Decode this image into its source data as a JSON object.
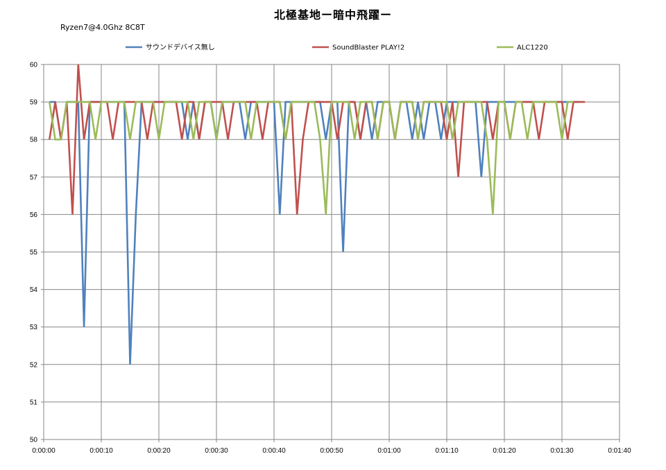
{
  "chart_data": {
    "type": "line",
    "title": "北極基地ー暗中飛躍ー",
    "subtitle": "Ryzen7@4.0Ghz 8C8T",
    "xlabel": "",
    "ylabel": "",
    "ylim": [
      50,
      60
    ],
    "xlim": [
      0,
      100
    ],
    "grid": true,
    "legend_position": "top",
    "yticks": [
      "50",
      "51",
      "52",
      "53",
      "54",
      "55",
      "56",
      "57",
      "58",
      "59",
      "60"
    ],
    "xticks": [
      "0:00:00",
      "0:00:10",
      "0:00:20",
      "0:00:30",
      "0:00:40",
      "0:00:50",
      "0:01:00",
      "0:01:10",
      "0:01:20",
      "0:01:30",
      "0:01:40"
    ],
    "series": [
      {
        "name": "サウンドデバイス無し",
        "color": "#4F81BD",
        "x": [
          1,
          2,
          3,
          4,
          5,
          6,
          7,
          8,
          9,
          10,
          11,
          12,
          13,
          14,
          15,
          16,
          17,
          18,
          19,
          20,
          21,
          22,
          23,
          24,
          25,
          26,
          27,
          28,
          29,
          30,
          31,
          32,
          33,
          34,
          35,
          36,
          37,
          38,
          39,
          40,
          41,
          42,
          43,
          44,
          45,
          46,
          47,
          48,
          49,
          50,
          51,
          52,
          53,
          54,
          55,
          56,
          57,
          58,
          59,
          60,
          61,
          62,
          63,
          64,
          65,
          66,
          67,
          68,
          69,
          70,
          71,
          72,
          73,
          74,
          75,
          76,
          77,
          78,
          79,
          80,
          81,
          82,
          83,
          84,
          85,
          86,
          87,
          88,
          89,
          90,
          91,
          92,
          93
        ],
        "y": [
          59,
          59,
          58,
          59,
          59,
          59,
          53,
          59,
          59,
          59,
          59,
          59,
          59,
          59,
          52,
          56,
          59,
          59,
          59,
          59,
          59,
          59,
          59,
          59,
          58,
          59,
          58,
          59,
          59,
          58,
          59,
          59,
          59,
          59,
          58,
          59,
          59,
          59,
          59,
          59,
          56,
          59,
          59,
          59,
          59,
          59,
          59,
          59,
          58,
          59,
          59,
          55,
          59,
          59,
          58,
          59,
          58,
          59,
          59,
          59,
          58,
          59,
          59,
          58,
          59,
          58,
          59,
          59,
          58,
          59,
          59,
          59,
          59,
          59,
          59,
          57,
          59,
          59,
          59,
          59,
          59,
          59,
          59,
          59,
          59,
          59,
          59,
          59,
          59,
          59,
          59,
          59,
          59
        ]
      },
      {
        "name": "SoundBlaster PLAY!2",
        "color": "#C0504D",
        "x": [
          1,
          2,
          3,
          4,
          5,
          6,
          7,
          8,
          9,
          10,
          11,
          12,
          13,
          14,
          15,
          16,
          17,
          18,
          19,
          20,
          21,
          22,
          23,
          24,
          25,
          26,
          27,
          28,
          29,
          30,
          31,
          32,
          33,
          34,
          35,
          36,
          37,
          38,
          39,
          40,
          41,
          42,
          43,
          44,
          45,
          46,
          47,
          48,
          49,
          50,
          51,
          52,
          53,
          54,
          55,
          56,
          57,
          58,
          59,
          60,
          61,
          62,
          63,
          64,
          65,
          66,
          67,
          68,
          69,
          70,
          71,
          72,
          73,
          74,
          75,
          76,
          77,
          78,
          79,
          80,
          81,
          82,
          83,
          84,
          85,
          86,
          87,
          88,
          89,
          90,
          91,
          92,
          93,
          94
        ],
        "y": [
          58,
          59,
          58,
          59,
          56,
          60,
          58,
          59,
          59,
          59,
          59,
          58,
          59,
          59,
          59,
          59,
          59,
          58,
          59,
          59,
          59,
          59,
          59,
          58,
          59,
          59,
          58,
          59,
          59,
          59,
          59,
          58,
          59,
          59,
          59,
          59,
          59,
          58,
          59,
          59,
          59,
          58,
          59,
          56,
          58,
          59,
          59,
          59,
          59,
          59,
          58,
          59,
          59,
          59,
          58,
          59,
          59,
          58,
          59,
          59,
          58,
          59,
          59,
          59,
          58,
          59,
          59,
          59,
          59,
          58,
          59,
          57,
          59,
          59,
          59,
          59,
          59,
          58,
          59,
          59,
          58,
          59,
          59,
          59,
          59,
          58,
          59,
          59,
          59,
          59,
          58,
          59,
          59,
          59
        ]
      },
      {
        "name": "ALC1220",
        "color": "#9BBB59",
        "x": [
          1,
          2,
          3,
          4,
          5,
          6,
          7,
          8,
          9,
          10,
          11,
          12,
          13,
          14,
          15,
          16,
          17,
          18,
          19,
          20,
          21,
          22,
          23,
          24,
          25,
          26,
          27,
          28,
          29,
          30,
          31,
          32,
          33,
          34,
          35,
          36,
          37,
          38,
          39,
          40,
          41,
          42,
          43,
          44,
          45,
          46,
          47,
          48,
          49,
          50,
          51,
          52,
          53,
          54,
          55,
          56,
          57,
          58,
          59,
          60,
          61,
          62,
          63,
          64,
          65,
          66,
          67,
          68,
          69,
          70,
          71,
          72,
          73,
          74,
          75,
          76,
          77,
          78,
          79,
          80,
          81,
          82,
          83,
          84,
          85,
          86,
          87,
          88,
          89,
          90,
          91,
          92
        ],
        "y": [
          59,
          58,
          58,
          59,
          59,
          59,
          59,
          59,
          58,
          59,
          59,
          59,
          59,
          59,
          58,
          59,
          59,
          59,
          59,
          58,
          59,
          59,
          59,
          59,
          59,
          58,
          59,
          59,
          59,
          58,
          59,
          59,
          59,
          59,
          59,
          58,
          59,
          59,
          59,
          59,
          59,
          58,
          59,
          59,
          59,
          59,
          59,
          58,
          56,
          59,
          59,
          59,
          59,
          58,
          59,
          59,
          59,
          58,
          59,
          59,
          58,
          59,
          59,
          59,
          58,
          59,
          59,
          59,
          59,
          59,
          58,
          59,
          59,
          59,
          59,
          59,
          58,
          56,
          59,
          59,
          58,
          59,
          59,
          58,
          59,
          59,
          59,
          59,
          59,
          58,
          59,
          59
        ]
      }
    ]
  }
}
